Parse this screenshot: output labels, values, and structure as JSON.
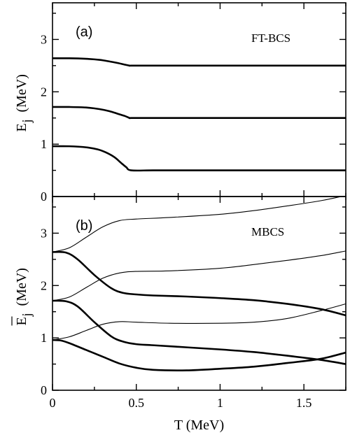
{
  "chart_data": [
    {
      "type": "line",
      "panel_tag": "(a)",
      "title": "FT-BCS",
      "ylabel": "E",
      "ylabel_sub": "j",
      "ylabel_unit": "(MeV)",
      "xlim": [
        0,
        1.75
      ],
      "ylim": [
        0,
        3.7
      ],
      "x_ticks": [
        0,
        0.5,
        1,
        1.5
      ],
      "x_tick_labels": [
        "",
        "",
        "",
        ""
      ],
      "y_ticks": [
        0,
        1,
        2,
        3
      ],
      "y_tick_labels": [
        "0",
        "1",
        "2",
        "3"
      ],
      "grid": false,
      "series": [
        {
          "style": "thick",
          "x": [
            0,
            0.1,
            0.2,
            0.28,
            0.34,
            0.39,
            0.43,
            0.46,
            0.47,
            0.6,
            0.8,
            1.0,
            1.2,
            1.4,
            1.6,
            1.75
          ],
          "y": [
            2.64,
            2.64,
            2.63,
            2.61,
            2.58,
            2.55,
            2.52,
            2.5,
            2.5,
            2.5,
            2.5,
            2.5,
            2.5,
            2.5,
            2.5,
            2.5
          ]
        },
        {
          "style": "thick",
          "x": [
            0,
            0.1,
            0.2,
            0.28,
            0.34,
            0.39,
            0.43,
            0.46,
            0.47,
            0.6,
            0.8,
            1.0,
            1.2,
            1.4,
            1.6,
            1.75
          ],
          "y": [
            1.71,
            1.71,
            1.7,
            1.67,
            1.63,
            1.58,
            1.54,
            1.5,
            1.5,
            1.5,
            1.5,
            1.5,
            1.5,
            1.5,
            1.5,
            1.5
          ]
        },
        {
          "style": "thick",
          "x": [
            0,
            0.1,
            0.2,
            0.27,
            0.32,
            0.37,
            0.41,
            0.44,
            0.47,
            0.6,
            0.8,
            1.0,
            1.2,
            1.4,
            1.6,
            1.75
          ],
          "y": [
            0.96,
            0.96,
            0.94,
            0.9,
            0.84,
            0.75,
            0.64,
            0.56,
            0.5,
            0.5,
            0.5,
            0.5,
            0.5,
            0.5,
            0.5,
            0.5
          ]
        }
      ]
    },
    {
      "type": "line",
      "panel_tag": "(b)",
      "title": "MBCS",
      "ylabel": "E",
      "ylabel_sub": "j",
      "ylabel_unit": "(MeV)",
      "xlabel": "T (MeV)",
      "xlim": [
        0,
        1.75
      ],
      "ylim": [
        0,
        3.7
      ],
      "x_ticks": [
        0,
        0.5,
        1,
        1.5
      ],
      "x_tick_labels": [
        "0",
        "0.5",
        "1",
        "1.5"
      ],
      "y_ticks": [
        0,
        1,
        2,
        3
      ],
      "y_tick_labels": [
        "0",
        "1",
        "2",
        "3"
      ],
      "grid": false,
      "series": [
        {
          "style": "thin",
          "x": [
            0,
            0.1,
            0.2,
            0.3,
            0.4,
            0.5,
            0.7,
            1.0,
            1.2,
            1.4,
            1.6,
            1.75
          ],
          "y": [
            2.64,
            2.72,
            2.92,
            3.12,
            3.24,
            3.27,
            3.3,
            3.36,
            3.43,
            3.52,
            3.62,
            3.72
          ]
        },
        {
          "style": "thin",
          "x": [
            0,
            0.1,
            0.2,
            0.3,
            0.4,
            0.5,
            0.7,
            1.0,
            1.2,
            1.4,
            1.6,
            1.75
          ],
          "y": [
            1.71,
            1.78,
            1.96,
            2.14,
            2.24,
            2.27,
            2.28,
            2.33,
            2.4,
            2.48,
            2.57,
            2.66
          ]
        },
        {
          "style": "thin",
          "x": [
            0,
            0.1,
            0.2,
            0.3,
            0.4,
            0.5,
            0.7,
            1.0,
            1.2,
            1.4,
            1.6,
            1.75
          ],
          "y": [
            0.96,
            1.02,
            1.14,
            1.26,
            1.31,
            1.3,
            1.28,
            1.28,
            1.3,
            1.37,
            1.52,
            1.65
          ]
        },
        {
          "style": "thick",
          "x": [
            0,
            0.08,
            0.15,
            0.25,
            0.35,
            0.42,
            0.5,
            0.6,
            0.8,
            1.0,
            1.2,
            1.4,
            1.6,
            1.75
          ],
          "y": [
            2.64,
            2.63,
            2.5,
            2.2,
            1.95,
            1.86,
            1.83,
            1.81,
            1.79,
            1.76,
            1.72,
            1.65,
            1.55,
            1.43
          ]
        },
        {
          "style": "thick",
          "x": [
            0,
            0.08,
            0.15,
            0.25,
            0.35,
            0.42,
            0.5,
            0.6,
            0.8,
            1.0,
            1.2,
            1.4,
            1.6,
            1.75
          ],
          "y": [
            1.71,
            1.7,
            1.6,
            1.3,
            1.03,
            0.93,
            0.88,
            0.86,
            0.82,
            0.78,
            0.73,
            0.66,
            0.58,
            0.5
          ]
        },
        {
          "style": "thick",
          "x": [
            0,
            0.05,
            0.1,
            0.2,
            0.3,
            0.4,
            0.5,
            0.6,
            0.8,
            1.0,
            1.2,
            1.4,
            1.6,
            1.75
          ],
          "y": [
            0.96,
            0.95,
            0.9,
            0.77,
            0.64,
            0.51,
            0.43,
            0.39,
            0.38,
            0.41,
            0.45,
            0.52,
            0.6,
            0.72
          ]
        }
      ]
    }
  ]
}
